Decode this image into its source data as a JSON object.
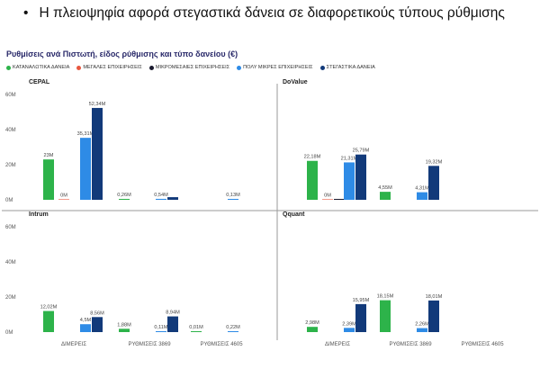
{
  "headline": {
    "bullet": "•",
    "text": "Η πλειοψηφία αφορά στεγαστικά δάνεια σε διαφορετικούς τύπους ρύθμισης"
  },
  "chart_data": {
    "type": "bar",
    "title": "Ρυθμίσεις ανά Πιστωτή, είδος ρύθμισης και τύπο δανείου (€)",
    "categories": [
      "ΔΙΜΕΡΕΙΣ",
      "ΡΥΘΜΙΣΕΙΣ 3869",
      "ΡΥΘΜΙΣΕΙΣ 4605"
    ],
    "ylim": [
      0,
      60
    ],
    "yticks": [
      "0M",
      "20M",
      "40M",
      "60M"
    ],
    "grid": false,
    "legend_position": "top-left",
    "series": [
      {
        "name": "ΚΑΤΑΝΑΛΩΤΙΚΑ ΔΑΝΕΙΑ",
        "color": "#2db34a"
      },
      {
        "name": "ΜΕΓΑΛΕΣ ΕΠΙΧΕΙΡΗΣΕΙΣ",
        "color": "#e8573f"
      },
      {
        "name": "ΜΙΚΡΟΜΕΣΑΙΕΣ ΕΠΙΧΕΙΡΗΣΕΙΣ",
        "color": "#1a1a2e"
      },
      {
        "name": "ΠΟΛΥ ΜΙΚΡΕΣ ΕΠΙΧΕΙΡΗΣΕΙΣ",
        "color": "#2e8be6"
      },
      {
        "name": "ΣΤΕΓΑΣΤΙΚΑ ΔΑΝΕΙΑ",
        "color": "#123a7a"
      }
    ],
    "panels": [
      {
        "name": "CEPAL",
        "show_category_labels": false,
        "values": [
          [
            23,
            0,
            null,
            35.31,
            52.34
          ],
          [
            0.26,
            null,
            null,
            0.54,
            1.5
          ],
          [
            null,
            null,
            null,
            0.13,
            null
          ]
        ],
        "labels": [
          [
            "23M",
            "0M",
            null,
            "35,31M",
            "52,34M"
          ],
          [
            "0,26M",
            null,
            null,
            "0,54M",
            null
          ],
          [
            null,
            null,
            null,
            "0,13M",
            null
          ]
        ]
      },
      {
        "name": "DoValue",
        "show_category_labels": false,
        "values": [
          [
            22.18,
            0,
            0.4,
            21.31,
            25.79
          ],
          [
            4.55,
            null,
            null,
            4.31,
            19.32
          ],
          [
            null,
            null,
            null,
            null,
            null
          ]
        ],
        "labels": [
          [
            "22,18M",
            "0M",
            null,
            "21,31M",
            "25,79M"
          ],
          [
            "4,55M",
            null,
            null,
            "4,31M",
            "19,32M"
          ],
          [
            null,
            null,
            null,
            null,
            null
          ]
        ]
      },
      {
        "name": "Intrum",
        "show_category_labels": true,
        "values": [
          [
            12.02,
            null,
            null,
            4.5,
            8.56
          ],
          [
            1.88,
            null,
            null,
            0.11,
            8.94
          ],
          [
            0.01,
            null,
            null,
            0.22,
            null
          ]
        ],
        "labels": [
          [
            "12,02M",
            null,
            null,
            "4,5M",
            "8,56M"
          ],
          [
            "1,88M",
            null,
            null,
            "0,11M",
            "8,94M"
          ],
          [
            "0,01M",
            null,
            null,
            "0,22M",
            null
          ]
        ]
      },
      {
        "name": "Qquant",
        "show_category_labels": true,
        "values": [
          [
            2.98,
            null,
            null,
            2.39,
            15.95
          ],
          [
            18.15,
            null,
            null,
            2.26,
            18.01
          ],
          [
            null,
            null,
            null,
            null,
            null
          ]
        ],
        "labels": [
          [
            "2,98M",
            null,
            null,
            "2,39M",
            "15,95M"
          ],
          [
            "18,15M",
            null,
            null,
            "2,26M",
            "18,01M"
          ],
          [
            null,
            null,
            null,
            null,
            null
          ]
        ]
      }
    ]
  }
}
